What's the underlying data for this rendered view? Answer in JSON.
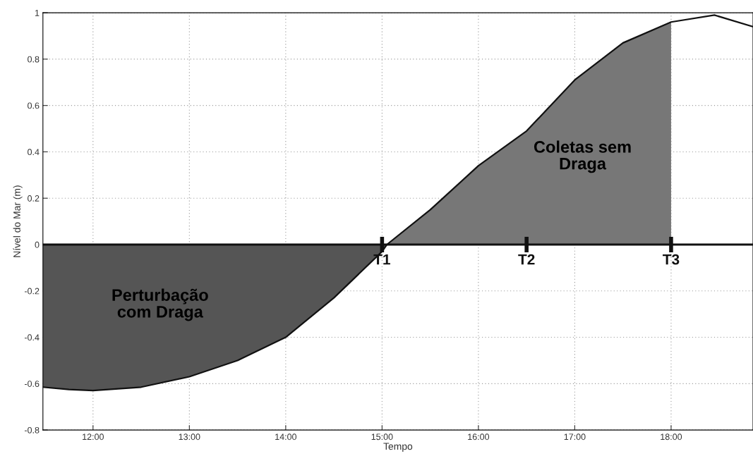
{
  "chart_data": {
    "type": "line",
    "xlabel": "Tempo",
    "ylabel": "Nível do Mar (m)",
    "xlim": [
      11.48,
      18.85
    ],
    "xticks": [
      {
        "value": 12,
        "label": "12:00"
      },
      {
        "value": 13,
        "label": "13:00"
      },
      {
        "value": 14,
        "label": "14:00"
      },
      {
        "value": 15,
        "label": "15:00"
      },
      {
        "value": 16,
        "label": "16:00"
      },
      {
        "value": 17,
        "label": "17:00"
      },
      {
        "value": 18,
        "label": "18:00"
      }
    ],
    "ylim": [
      -0.8,
      1
    ],
    "yticks": [
      {
        "value": -0.8,
        "label": "-0.8"
      },
      {
        "value": -0.6,
        "label": "-0.6"
      },
      {
        "value": -0.4,
        "label": "-0.4"
      },
      {
        "value": -0.2,
        "label": "-0.2"
      },
      0,
      0.2,
      0.4,
      0.6,
      0.8,
      1
    ],
    "grid": true,
    "series": [
      {
        "type": "area",
        "color": "#555555",
        "x": [
          11.48,
          11.75,
          12.0,
          12.5,
          13.0,
          13.5,
          14.0,
          14.5,
          15.0,
          15.05
        ],
        "values": [
          -0.615,
          -0.625,
          -0.63,
          -0.615,
          -0.57,
          -0.5,
          -0.4,
          -0.23,
          -0.03,
          0
        ]
      },
      {
        "type": "area",
        "color": "#777777",
        "x": [
          15.05,
          15.5,
          16.0,
          16.5,
          17.0,
          17.5,
          18.0
        ],
        "values": [
          0,
          0.15,
          0.34,
          0.49,
          0.71,
          0.87,
          0.96
        ]
      },
      {
        "color": "#111111",
        "x": [
          11.48,
          11.75,
          12.0,
          12.5,
          13.0,
          13.5,
          14.0,
          14.5,
          15.0,
          15.05,
          15.5,
          16.0,
          16.5,
          17.0,
          17.5,
          18.0,
          18.45,
          18.85
        ],
        "values": [
          -0.615,
          -0.625,
          -0.63,
          -0.615,
          -0.57,
          -0.5,
          -0.4,
          -0.23,
          -0.03,
          0,
          0.15,
          0.34,
          0.49,
          0.71,
          0.87,
          0.96,
          0.99,
          0.94
        ]
      }
    ],
    "ref_lines": [
      {
        "axis": "y",
        "value": 0,
        "label": null,
        "color": "#111111"
      }
    ],
    "annotations": [
      {
        "text": "T1",
        "x": 15.0,
        "y": 0
      },
      {
        "text": "T2",
        "x": 16.5,
        "y": 0
      },
      {
        "text": "T3",
        "x": 18.0,
        "y": 0
      },
      "Perturbação\ncom Draga",
      "Coletas sem\nDraga"
    ]
  }
}
